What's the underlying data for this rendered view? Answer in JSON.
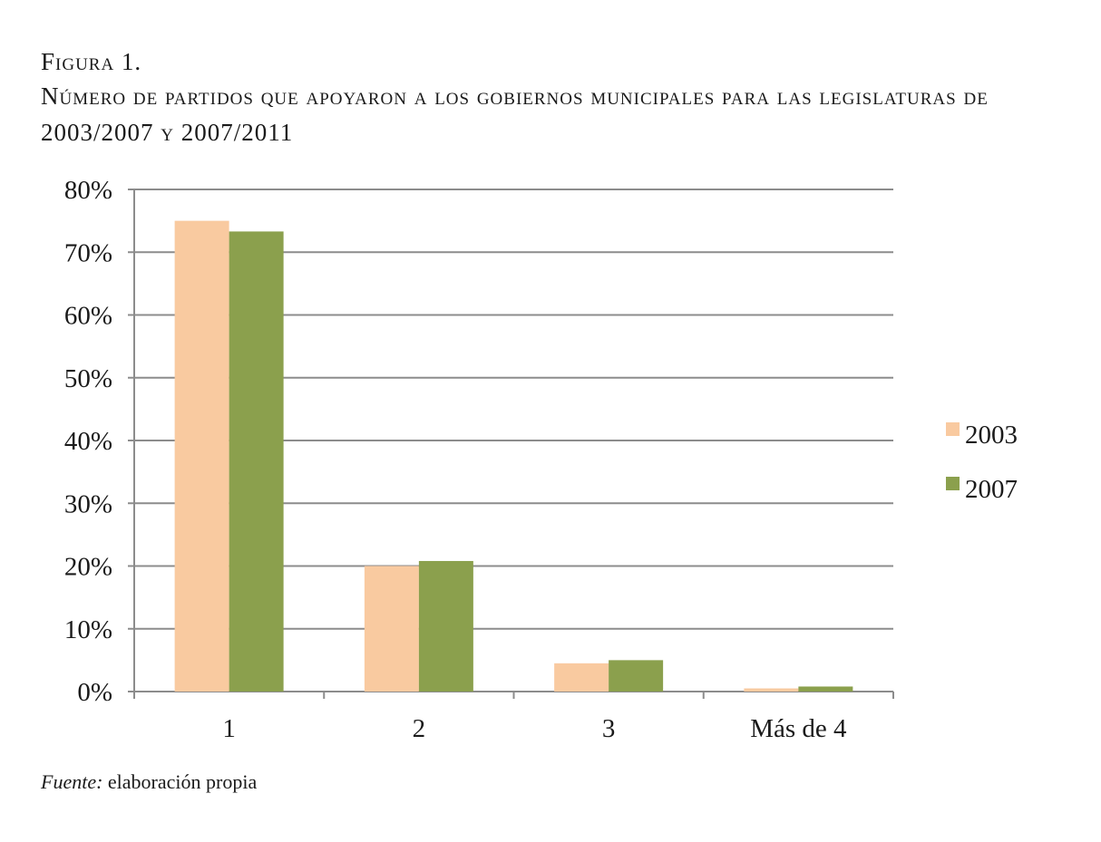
{
  "figure": {
    "label": "Figura 1.",
    "title": "Número de partidos que apoyaron a los gobiernos municipales para las legislaturas de 2003/2007 y 2007/2011"
  },
  "source": {
    "prefix": "Fuente:",
    "text": " elaboración propia"
  },
  "chart_data": {
    "type": "bar",
    "categories": [
      "1",
      "2",
      "3",
      "Más de 4"
    ],
    "series": [
      {
        "name": "2003",
        "values": [
          75,
          20,
          4.5,
          0.5
        ],
        "color": "#f9caa0"
      },
      {
        "name": "2007",
        "values": [
          73.3,
          20.8,
          5,
          0.8
        ],
        "color": "#8ba04d"
      }
    ],
    "ylim": [
      0,
      80
    ],
    "yticks": [
      0,
      10,
      20,
      30,
      40,
      50,
      60,
      70,
      80
    ],
    "ytick_labels": [
      "0%",
      "10%",
      "20%",
      "30%",
      "40%",
      "50%",
      "60%",
      "70%",
      "80%"
    ],
    "grid": true,
    "legend_position": "right",
    "xlabel": "",
    "ylabel": ""
  }
}
